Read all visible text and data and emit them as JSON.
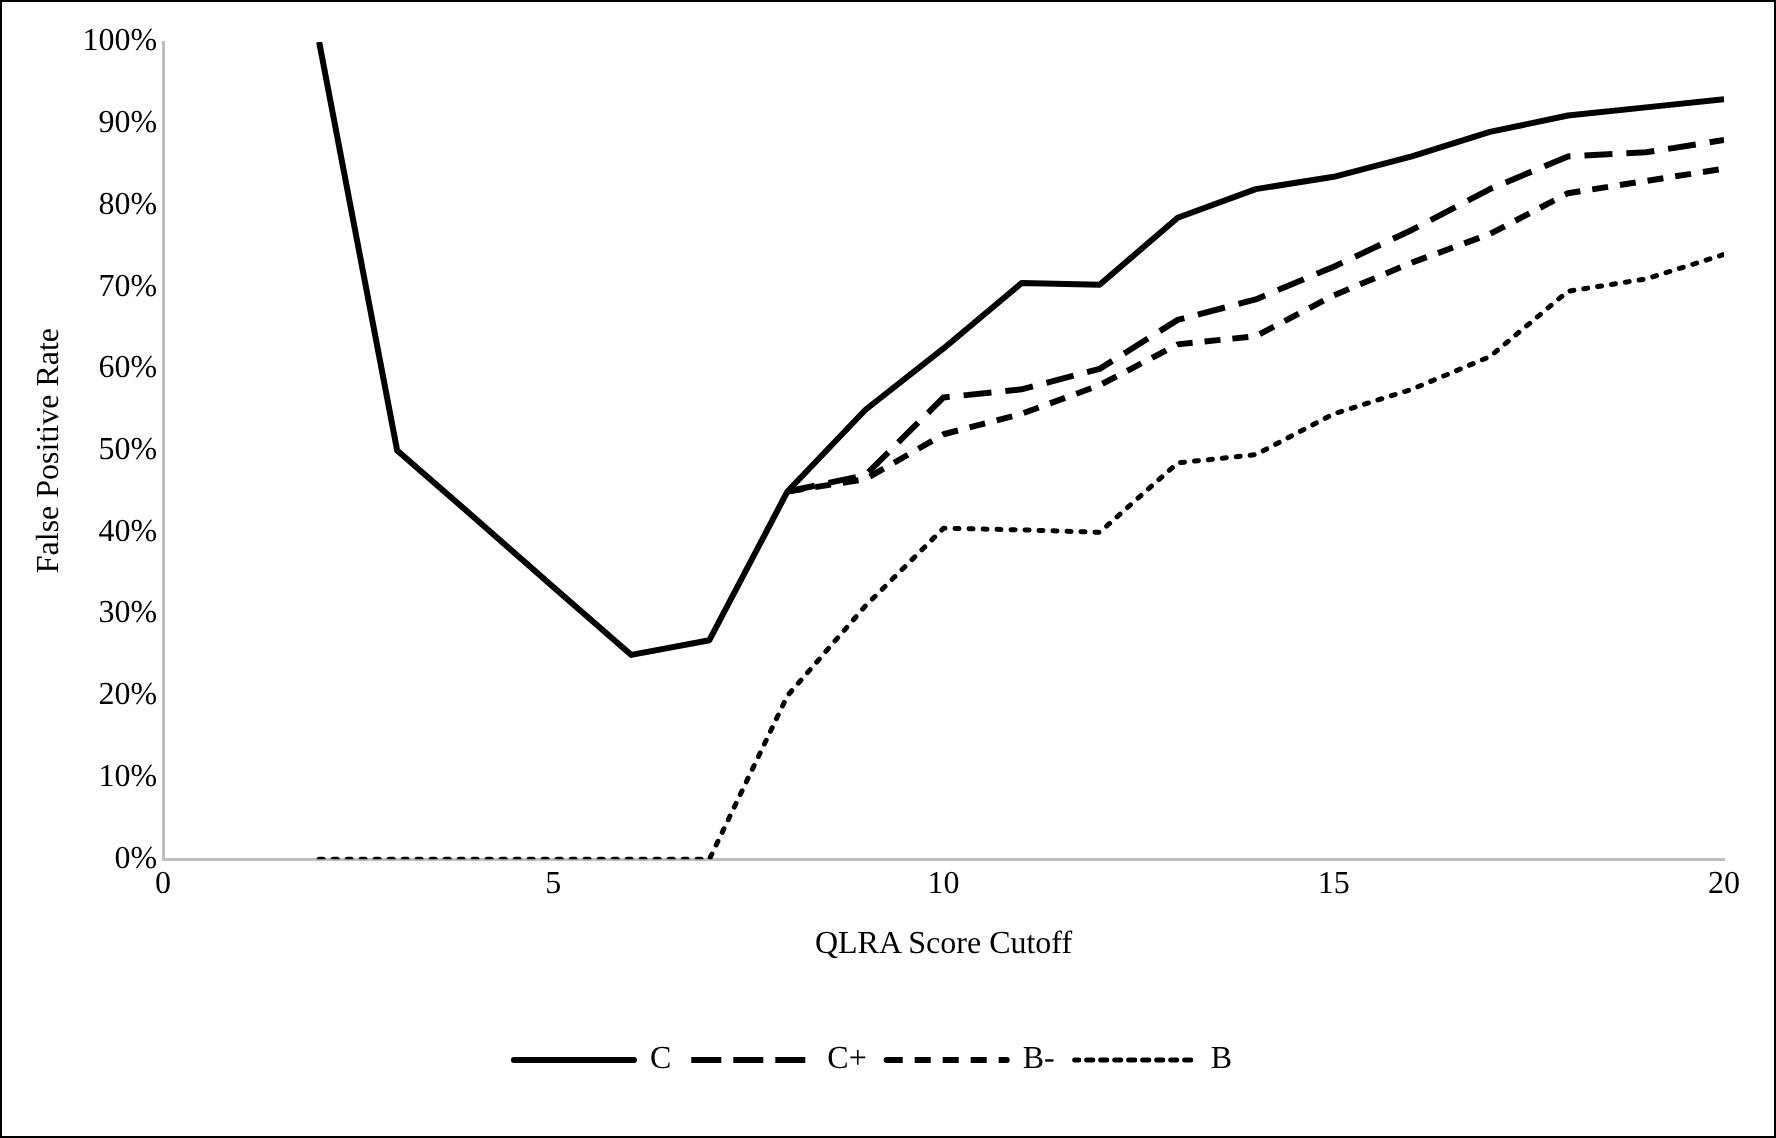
{
  "chart_data": {
    "type": "line",
    "xlabel": "QLRA Score Cutoff",
    "ylabel": "False Positive Rate",
    "x": [
      2,
      3,
      4,
      5,
      6,
      7,
      8,
      9,
      10,
      11,
      12,
      13,
      14,
      15,
      16,
      17,
      18,
      19,
      20
    ],
    "xlim": [
      0,
      20
    ],
    "xticks": [
      0,
      5,
      10,
      15,
      20
    ],
    "ylim": [
      0,
      100
    ],
    "yticks": [
      {
        "value": 0,
        "label": "0%"
      },
      {
        "value": 10,
        "label": "10%"
      },
      {
        "value": 20,
        "label": "20%"
      },
      {
        "value": 30,
        "label": "30%"
      },
      {
        "value": 40,
        "label": "40%"
      },
      {
        "value": 50,
        "label": "50%"
      },
      {
        "value": 60,
        "label": "60%"
      },
      {
        "value": 70,
        "label": "70%"
      },
      {
        "value": 80,
        "label": "80%"
      },
      {
        "value": 90,
        "label": "90%"
      },
      {
        "value": 100,
        "label": "100%"
      }
    ],
    "grid": false,
    "legend": "bottom",
    "marker": "none",
    "series": [
      {
        "name": "C",
        "color": "#000000",
        "line_style": "solid",
        "values": [
          100,
          50,
          41.7,
          33.3,
          25,
          26.8,
          45,
          55,
          62.5,
          70.5,
          70.3,
          78.5,
          82,
          83.5,
          86,
          89,
          91,
          92,
          93
        ]
      },
      {
        "name": "C+",
        "color": "#000000",
        "line_style": "dashed",
        "values": [
          null,
          null,
          null,
          null,
          null,
          null,
          45,
          47,
          56.5,
          57.5,
          60,
          66,
          68.5,
          72.5,
          77,
          82,
          86,
          86.5,
          88
        ]
      },
      {
        "name": "B-",
        "color": "#000000",
        "line_style": "dashed",
        "values": [
          null,
          null,
          null,
          null,
          null,
          null,
          45,
          46.5,
          52,
          54.5,
          58,
          63,
          64,
          69,
          73,
          76.5,
          81.5,
          83,
          84.5
        ]
      },
      {
        "name": "B",
        "color": "#000000",
        "line_style": "dotted",
        "values": [
          0,
          0,
          0,
          0,
          0,
          0,
          20,
          31,
          40.5,
          40.3,
          40,
          48.5,
          49.5,
          54.5,
          57.5,
          61.5,
          69.5,
          71,
          74
        ]
      }
    ]
  }
}
